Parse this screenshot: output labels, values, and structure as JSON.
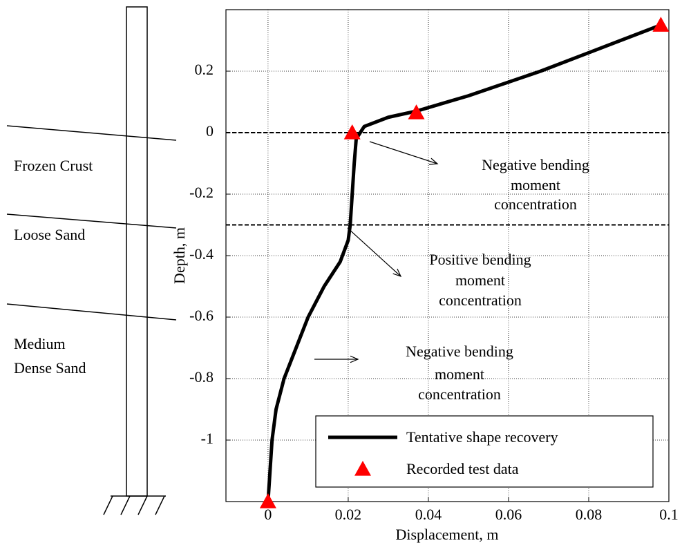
{
  "chart_data": {
    "type": "line",
    "xlabel": "Displacement, m",
    "ylabel": "Depth, m",
    "xlim": [
      -0.0105,
      0.1
    ],
    "xticks": [
      0,
      0.02,
      0.04,
      0.06,
      0.08,
      0.1
    ],
    "ylim": [
      -1.2,
      0.4
    ],
    "yticks": [
      -1,
      -0.8,
      -0.6,
      -0.4,
      -0.2,
      0,
      0.2
    ],
    "grid": true,
    "hlines": [
      0,
      -0.3
    ],
    "series": [
      {
        "name": "Tentative shape recovery",
        "color": "#000000",
        "x": [
          0,
          0.001,
          0.002,
          0.004,
          0.007,
          0.01,
          0.014,
          0.018,
          0.02,
          0.0205,
          0.021,
          0.0215,
          0.022,
          0.024,
          0.03,
          0.037,
          0.05,
          0.068,
          0.08,
          0.098
        ],
        "values": [
          -1.2,
          -1.0,
          -0.9,
          -0.8,
          -0.7,
          -0.6,
          -0.5,
          -0.42,
          -0.35,
          -0.3,
          -0.2,
          -0.1,
          -0.02,
          0.02,
          0.05,
          0.07,
          0.12,
          0.2,
          0.26,
          0.35
        ]
      },
      {
        "name": "Recorded test data",
        "color": "#ff0000",
        "marker": "triangle",
        "x": [
          0,
          0.021,
          0.037,
          0.098
        ],
        "values": [
          -1.2,
          0,
          0.065,
          0.35
        ]
      }
    ],
    "annotations": [
      [
        "Negative bending",
        "moment",
        "concentration"
      ],
      [
        "Positive bending",
        "moment",
        "concentration"
      ],
      [
        "Negative bending",
        "moment",
        "concentration"
      ]
    ]
  },
  "soil_layers": [
    [
      "Frozen Crust"
    ],
    [
      "Loose Sand"
    ],
    [
      "Medium",
      "Dense Sand"
    ]
  ]
}
